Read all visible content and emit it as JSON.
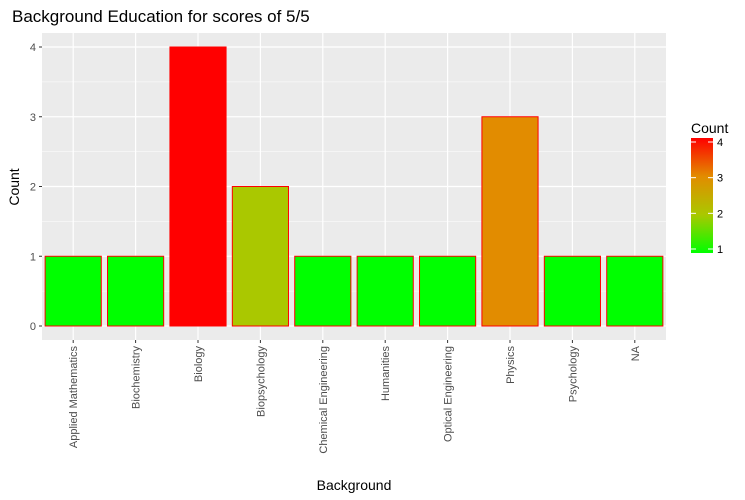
{
  "chart_data": {
    "type": "bar",
    "title": "Background Education for scores of 5/5",
    "xlabel": "Background",
    "ylabel": "Count",
    "categories": [
      "Applied Mathematics",
      "Biochemistry",
      "Biology",
      "Biopsychology",
      "Chemical Engineering",
      "Humanities",
      "Optical Engineering",
      "Physics",
      "Psychology",
      "NA"
    ],
    "values": [
      1,
      1,
      4,
      2,
      1,
      1,
      1,
      3,
      1,
      1
    ],
    "ylim": [
      0,
      4.2
    ],
    "yticks": [
      0,
      1,
      2,
      3,
      4
    ],
    "grid": true,
    "legend": {
      "title": "Count",
      "position": "right",
      "type": "colorbar",
      "ticks": [
        1,
        2,
        3,
        4
      ],
      "low_color": "#00ff00",
      "high_color": "#ff0000"
    },
    "bar_outline_color": "#ff0000",
    "panel_background": "#ebebeb"
  }
}
